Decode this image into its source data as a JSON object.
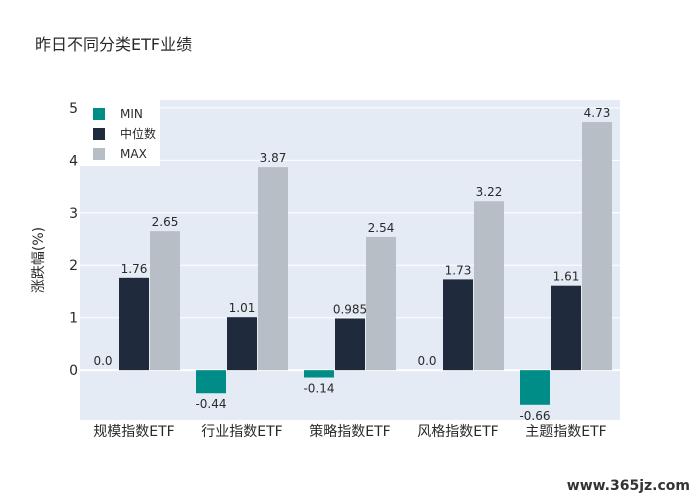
{
  "chart_data": {
    "type": "bar",
    "title": "昨日不同分类ETF业绩",
    "ylabel": "涨跌幅(%)",
    "xlabel": "",
    "categories": [
      "规模指数ETF",
      "行业指数ETF",
      "策略指数ETF",
      "风格指数ETF",
      "主题指数ETF"
    ],
    "series": [
      {
        "name": "MIN",
        "values": [
          0.0,
          -0.44,
          -0.14,
          0.0,
          -0.66
        ],
        "labels": [
          "0.0",
          "-0.44",
          "-0.14",
          "0.0",
          "-0.66"
        ],
        "color": "#008c87"
      },
      {
        "name": "中位数",
        "values": [
          1.76,
          1.01,
          0.985,
          1.73,
          1.61
        ],
        "labels": [
          "1.76",
          "1.01",
          "0.985",
          "1.73",
          "1.61"
        ],
        "color": "#1f2a3c"
      },
      {
        "name": "MAX",
        "values": [
          2.65,
          3.87,
          2.54,
          3.22,
          4.73
        ],
        "labels": [
          "2.65",
          "3.87",
          "2.54",
          "3.22",
          "4.73"
        ],
        "color": "#b8bec6"
      }
    ],
    "ylim": [
      -0.95,
      5.15
    ],
    "yticks": [
      0,
      1,
      2,
      3,
      4,
      5
    ],
    "grid": true,
    "legend": "top-left",
    "plot_background": "#e5ebf5"
  },
  "watermark": "www.365jz.com"
}
